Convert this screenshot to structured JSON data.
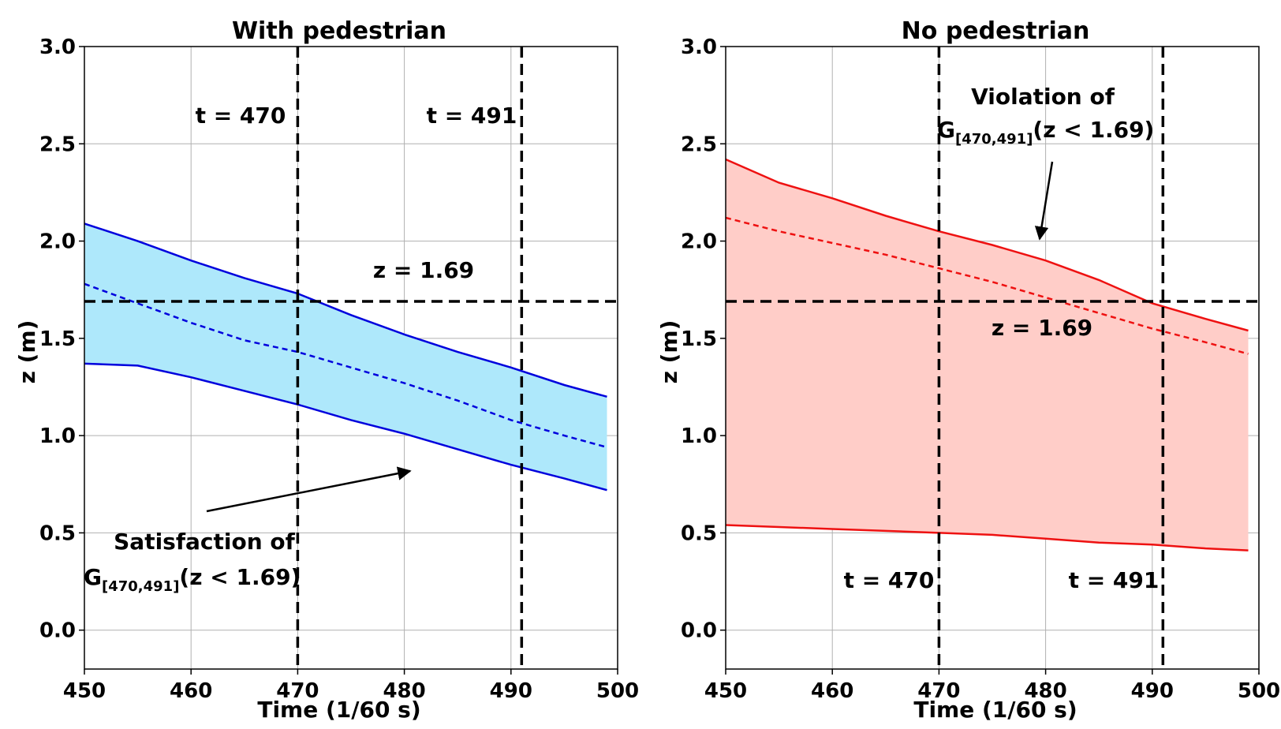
{
  "chart_data": [
    {
      "type": "area",
      "title": "With pedestrian",
      "xlabel": "Time (1/60 s)",
      "ylabel": "z (m)",
      "xlim": [
        450,
        500
      ],
      "ylim": [
        -0.2,
        3.0
      ],
      "xticks": [
        "450",
        "460",
        "470",
        "480",
        "490",
        "500"
      ],
      "yticks": [
        "0.0",
        "0.5",
        "1.0",
        "1.5",
        "2.0",
        "2.5",
        "3.0"
      ],
      "grid": true,
      "color": "#0000dd",
      "fill_color": "#aee8fb",
      "x": [
        450,
        455,
        460,
        465,
        470,
        475,
        480,
        485,
        490,
        495,
        499
      ],
      "series": [
        {
          "name": "upper",
          "style": "solid",
          "values": [
            2.09,
            2.0,
            1.9,
            1.81,
            1.73,
            1.62,
            1.52,
            1.43,
            1.35,
            1.26,
            1.2
          ]
        },
        {
          "name": "mean",
          "style": "dashed",
          "values": [
            1.78,
            1.68,
            1.58,
            1.49,
            1.43,
            1.35,
            1.27,
            1.18,
            1.08,
            1.0,
            0.94
          ]
        },
        {
          "name": "lower",
          "style": "solid",
          "values": [
            1.37,
            1.36,
            1.3,
            1.23,
            1.16,
            1.08,
            1.01,
            0.93,
            0.85,
            0.78,
            0.72
          ]
        }
      ],
      "vlines": [
        470,
        491
      ],
      "hline": 1.69,
      "annotations": {
        "t1": "t = 470",
        "t2": "t = 491",
        "zlabel": "z = 1.69",
        "result_line1": "Satisfaction of",
        "result_G": "G",
        "result_sub": "[470,491]",
        "result_rest": "(z < 1.69)"
      }
    },
    {
      "type": "area",
      "title": "No pedestrian",
      "xlabel": "Time (1/60 s)",
      "ylabel": "z (m)",
      "xlim": [
        450,
        500
      ],
      "ylim": [
        -0.2,
        3.0
      ],
      "xticks": [
        "450",
        "460",
        "470",
        "480",
        "490",
        "500"
      ],
      "yticks": [
        "0.0",
        "0.5",
        "1.0",
        "1.5",
        "2.0",
        "2.5",
        "3.0"
      ],
      "grid": true,
      "color": "#ee1111",
      "fill_color": "#ffcdc8",
      "x": [
        450,
        455,
        460,
        465,
        470,
        475,
        480,
        485,
        490,
        495,
        499
      ],
      "series": [
        {
          "name": "upper",
          "style": "solid",
          "values": [
            2.42,
            2.3,
            2.22,
            2.13,
            2.05,
            1.98,
            1.9,
            1.8,
            1.68,
            1.6,
            1.54
          ]
        },
        {
          "name": "mean",
          "style": "dashed",
          "values": [
            2.12,
            2.05,
            1.99,
            1.93,
            1.86,
            1.79,
            1.71,
            1.63,
            1.55,
            1.48,
            1.42
          ]
        },
        {
          "name": "lower",
          "style": "solid",
          "values": [
            0.54,
            0.53,
            0.52,
            0.51,
            0.5,
            0.49,
            0.47,
            0.45,
            0.44,
            0.42,
            0.41
          ]
        }
      ],
      "vlines": [
        470,
        491
      ],
      "hline": 1.69,
      "annotations": {
        "t1": "t = 470",
        "t2": "t = 491",
        "zlabel": "z = 1.69",
        "result_line1": "Violation of",
        "result_G": "G",
        "result_sub": "[470,491]",
        "result_rest": "(z < 1.69)"
      }
    }
  ]
}
